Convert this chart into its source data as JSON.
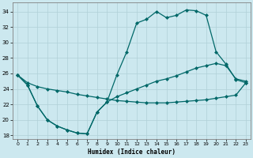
{
  "xlabel": "Humidex (Indice chaleur)",
  "bg_color": "#cce8ef",
  "line_color": "#006868",
  "grid_color": "#b0d0d8",
  "xlim": [
    -0.5,
    23.5
  ],
  "ylim": [
    17.5,
    35.2
  ],
  "xticks": [
    0,
    1,
    2,
    3,
    4,
    5,
    6,
    7,
    8,
    9,
    10,
    11,
    12,
    13,
    14,
    15,
    16,
    17,
    18,
    19,
    20,
    21,
    22,
    23
  ],
  "yticks": [
    18,
    20,
    22,
    24,
    26,
    28,
    30,
    32,
    34
  ],
  "line1_x": [
    0,
    1,
    2,
    3,
    4,
    5,
    6,
    7,
    8,
    9,
    10,
    11,
    12,
    13,
    14,
    15,
    16,
    17,
    18,
    19,
    20,
    21,
    22,
    23
  ],
  "line1_y": [
    25.8,
    24.5,
    21.8,
    20.0,
    19.2,
    18.7,
    18.3,
    18.2,
    21.0,
    22.3,
    25.8,
    28.8,
    32.5,
    33.0,
    34.0,
    33.2,
    33.5,
    34.2,
    34.1,
    33.5,
    28.8,
    27.2,
    25.2,
    24.8
  ],
  "line2_x": [
    0,
    1,
    2,
    3,
    4,
    5,
    6,
    7,
    8,
    9,
    10,
    11,
    12,
    13,
    14,
    15,
    16,
    17,
    18,
    19,
    20,
    21,
    22,
    23
  ],
  "line2_y": [
    25.8,
    24.5,
    21.8,
    20.0,
    19.2,
    18.7,
    18.3,
    18.2,
    21.0,
    22.3,
    23.0,
    23.5,
    24.0,
    24.5,
    25.0,
    25.3,
    25.7,
    26.2,
    26.7,
    27.0,
    27.3,
    27.0,
    25.3,
    25.0
  ],
  "line3_x": [
    0,
    1,
    2,
    3,
    4,
    5,
    6,
    7,
    8,
    9,
    10,
    11,
    12,
    13,
    14,
    15,
    16,
    17,
    18,
    19,
    20,
    21,
    22,
    23
  ],
  "line3_y": [
    25.8,
    24.8,
    24.3,
    24.0,
    23.8,
    23.6,
    23.3,
    23.1,
    22.9,
    22.7,
    22.5,
    22.4,
    22.3,
    22.2,
    22.2,
    22.2,
    22.3,
    22.4,
    22.5,
    22.6,
    22.8,
    23.0,
    23.2,
    24.8
  ]
}
